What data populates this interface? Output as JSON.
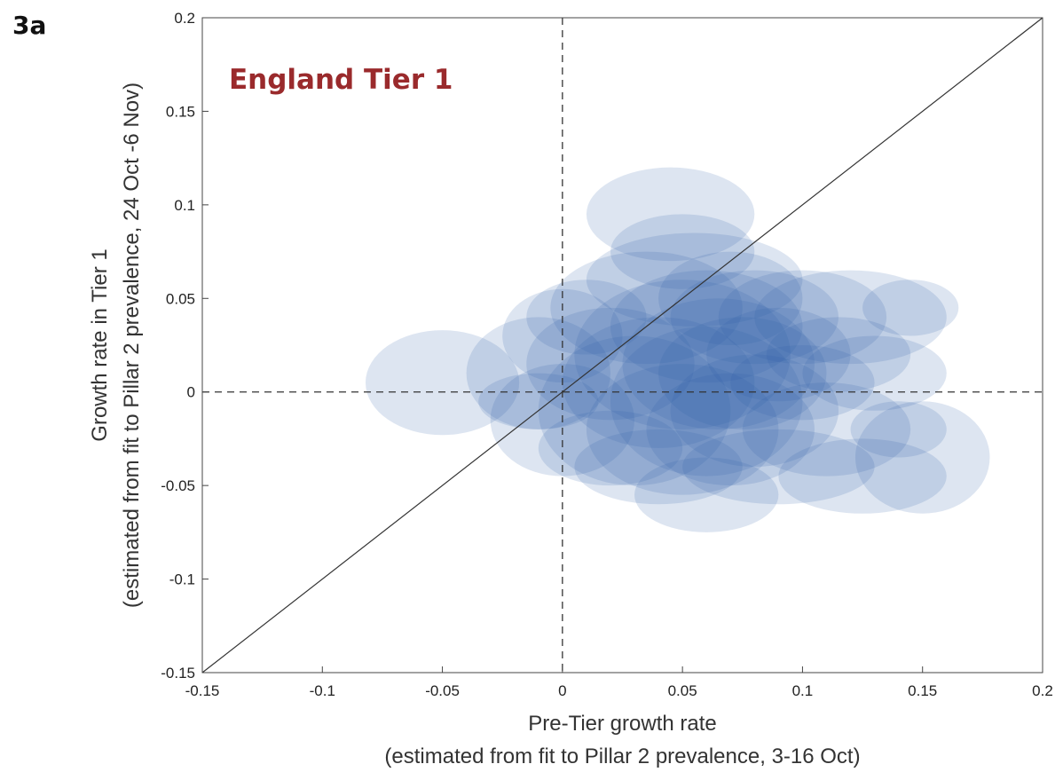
{
  "panel_label": "3a",
  "chart_data": {
    "type": "scatter",
    "title": "England Tier 1",
    "xlabel": "Pre-Tier growth rate",
    "xlabel_sub": "(estimated from fit to Pillar 2 prevalence, 3-16 Oct)",
    "ylabel": "Growth rate in Tier 1",
    "ylabel_sub": "(estimated from fit to Pillar 2 prevalence, 24 Oct -6 Nov)",
    "xlim": [
      -0.15,
      0.2
    ],
    "ylim": [
      -0.15,
      0.2
    ],
    "xticks": [
      -0.15,
      -0.1,
      -0.05,
      0,
      0.05,
      0.1,
      0.15,
      0.2
    ],
    "yticks": [
      -0.15,
      -0.1,
      -0.05,
      0,
      0.05,
      0.1,
      0.15,
      0.2
    ],
    "xtick_labels": [
      "-0.15",
      "-0.1",
      "-0.05",
      "0",
      "0.05",
      "0.1",
      "0.15",
      "0.2"
    ],
    "ytick_labels": [
      "-0.15",
      "-0.1",
      "-0.05",
      "0",
      "0.05",
      "0.1",
      "0.15",
      "0.2"
    ],
    "reference_lines": {
      "identity": true,
      "x_zero": true,
      "y_zero": true
    },
    "grid": false,
    "colors": {
      "ellipse": "#2a5caa",
      "title": "#9a2a2c"
    },
    "points": [
      {
        "x": -0.05,
        "y": 0.005,
        "rx": 0.032,
        "ry": 0.028
      },
      {
        "x": -0.01,
        "y": -0.005,
        "rx": 0.025,
        "ry": 0.015
      },
      {
        "x": -0.01,
        "y": 0.01,
        "rx": 0.03,
        "ry": 0.03
      },
      {
        "x": 0.0,
        "y": -0.015,
        "rx": 0.03,
        "ry": 0.03
      },
      {
        "x": 0.0,
        "y": 0.03,
        "rx": 0.025,
        "ry": 0.025
      },
      {
        "x": 0.01,
        "y": 0.04,
        "rx": 0.025,
        "ry": 0.02
      },
      {
        "x": 0.02,
        "y": -0.03,
        "rx": 0.03,
        "ry": 0.02
      },
      {
        "x": 0.02,
        "y": 0.015,
        "rx": 0.035,
        "ry": 0.03
      },
      {
        "x": 0.03,
        "y": -0.01,
        "rx": 0.04,
        "ry": 0.04
      },
      {
        "x": 0.035,
        "y": 0.045,
        "rx": 0.04,
        "ry": 0.03
      },
      {
        "x": 0.04,
        "y": -0.04,
        "rx": 0.035,
        "ry": 0.02
      },
      {
        "x": 0.04,
        "y": 0.005,
        "rx": 0.04,
        "ry": 0.035
      },
      {
        "x": 0.045,
        "y": 0.095,
        "rx": 0.035,
        "ry": 0.025
      },
      {
        "x": 0.05,
        "y": -0.02,
        "rx": 0.04,
        "ry": 0.035
      },
      {
        "x": 0.05,
        "y": 0.02,
        "rx": 0.045,
        "ry": 0.04
      },
      {
        "x": 0.05,
        "y": 0.075,
        "rx": 0.03,
        "ry": 0.02
      },
      {
        "x": 0.055,
        "y": 0.06,
        "rx": 0.045,
        "ry": 0.025
      },
      {
        "x": 0.06,
        "y": -0.005,
        "rx": 0.04,
        "ry": 0.04
      },
      {
        "x": 0.06,
        "y": 0.035,
        "rx": 0.04,
        "ry": 0.03
      },
      {
        "x": 0.06,
        "y": -0.055,
        "rx": 0.03,
        "ry": 0.02
      },
      {
        "x": 0.065,
        "y": 0.015,
        "rx": 0.04,
        "ry": 0.035
      },
      {
        "x": 0.07,
        "y": 0.05,
        "rx": 0.03,
        "ry": 0.025
      },
      {
        "x": 0.07,
        "y": -0.02,
        "rx": 0.035,
        "ry": 0.03
      },
      {
        "x": 0.075,
        "y": 0.01,
        "rx": 0.035,
        "ry": 0.03
      },
      {
        "x": 0.08,
        "y": 0.04,
        "rx": 0.035,
        "ry": 0.025
      },
      {
        "x": 0.08,
        "y": -0.01,
        "rx": 0.035,
        "ry": 0.03
      },
      {
        "x": 0.09,
        "y": 0.02,
        "rx": 0.03,
        "ry": 0.025
      },
      {
        "x": 0.09,
        "y": -0.04,
        "rx": 0.04,
        "ry": 0.02
      },
      {
        "x": 0.1,
        "y": 0.005,
        "rx": 0.03,
        "ry": 0.02
      },
      {
        "x": 0.1,
        "y": 0.04,
        "rx": 0.035,
        "ry": 0.025
      },
      {
        "x": 0.11,
        "y": -0.02,
        "rx": 0.035,
        "ry": 0.025
      },
      {
        "x": 0.115,
        "y": 0.02,
        "rx": 0.03,
        "ry": 0.02
      },
      {
        "x": 0.12,
        "y": 0.04,
        "rx": 0.04,
        "ry": 0.025
      },
      {
        "x": 0.125,
        "y": -0.045,
        "rx": 0.035,
        "ry": 0.02
      },
      {
        "x": 0.13,
        "y": 0.01,
        "rx": 0.03,
        "ry": 0.02
      },
      {
        "x": 0.14,
        "y": -0.02,
        "rx": 0.02,
        "ry": 0.015
      },
      {
        "x": 0.15,
        "y": -0.035,
        "rx": 0.028,
        "ry": 0.03
      },
      {
        "x": 0.145,
        "y": 0.045,
        "rx": 0.02,
        "ry": 0.015
      }
    ]
  }
}
